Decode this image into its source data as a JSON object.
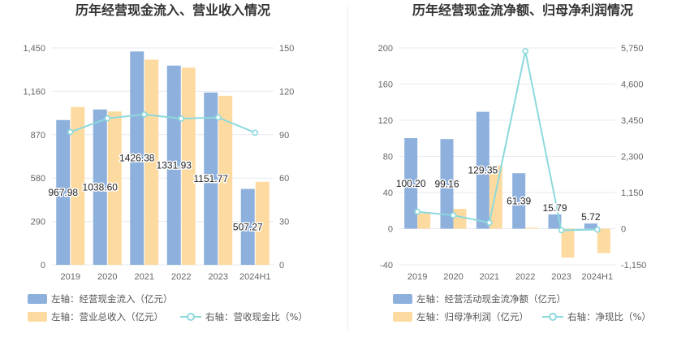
{
  "colors": {
    "bar_primary": "#8eb0dc",
    "bar_secondary": "#fddba0",
    "line": "#8cd9dd",
    "divider": "#eeeeee"
  },
  "chart_data": [
    {
      "type": "bar",
      "title": "历年经营现金流入、营业收入情况",
      "categories": [
        "2019",
        "2020",
        "2021",
        "2022",
        "2023",
        "2024H1"
      ],
      "y_left": {
        "ticks": [
          "0",
          "290",
          "580",
          "870",
          "1,160",
          "1,450"
        ],
        "ylim": [
          0,
          1450
        ]
      },
      "y_right": {
        "ticks": [
          "0",
          "30",
          "60",
          "90",
          "120",
          "150"
        ],
        "ylim": [
          0,
          150
        ]
      },
      "grid": true,
      "legend_position": "bottom",
      "series": [
        {
          "name": "左轴：经营现金流入（亿元）",
          "kind": "bar",
          "axis": "left",
          "values": [
            967.98,
            1038.6,
            1426.38,
            1331.93,
            1151.77,
            507.27
          ],
          "labels": [
            "967.98",
            "1038.60",
            "1426.38",
            "1331.93",
            "1151.77",
            "507.27"
          ]
        },
        {
          "name": "左轴：营业总收入（亿元）",
          "kind": "bar",
          "axis": "left",
          "values": [
            1055,
            1025,
            1372,
            1318,
            1130,
            555
          ]
        },
        {
          "name": "右轴：营收现金比（%）",
          "kind": "line",
          "axis": "right",
          "values": [
            91.8,
            101.3,
            104.0,
            101.1,
            101.9,
            91.4
          ]
        }
      ]
    },
    {
      "type": "bar",
      "title": "历年经营现金流净额、归母净利润情况",
      "categories": [
        "2019",
        "2020",
        "2021",
        "2022",
        "2023",
        "2024H1"
      ],
      "y_left": {
        "ticks": [
          "-40",
          "0",
          "40",
          "80",
          "120",
          "160",
          "200"
        ],
        "ylim": [
          -40,
          200
        ]
      },
      "y_right": {
        "ticks": [
          "-1,150",
          "0",
          "1,150",
          "2,300",
          "3,450",
          "4,600",
          "5,750"
        ],
        "ylim": [
          -1150,
          5750
        ]
      },
      "grid": true,
      "legend_position": "bottom",
      "series": [
        {
          "name": "左轴：经营活动现金流净额（亿元）",
          "kind": "bar",
          "axis": "left",
          "values": [
            100.2,
            99.16,
            129.35,
            61.39,
            15.79,
            5.72
          ],
          "labels": [
            "100.20",
            "99.16",
            "129.35",
            "61.39",
            "15.79",
            "5.72"
          ]
        },
        {
          "name": "左轴：归母净利润（亿元）",
          "kind": "bar",
          "axis": "left",
          "values": [
            17,
            22,
            70,
            1,
            -32,
            -27
          ]
        },
        {
          "name": "右轴：净现比（%）",
          "kind": "line",
          "axis": "right",
          "values": [
            540,
            425,
            190,
            5650,
            -50,
            -30
          ]
        }
      ]
    }
  ]
}
